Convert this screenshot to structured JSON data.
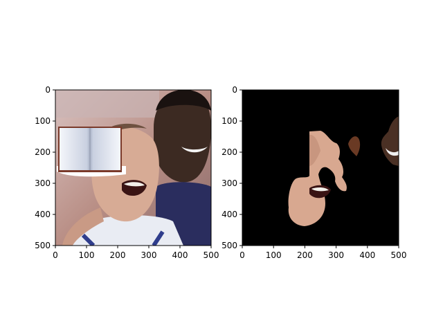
{
  "chart_data": [
    {
      "type": "image",
      "title": "",
      "xlabel": "",
      "ylabel": "",
      "xlim": [
        0,
        500
      ],
      "ylim": [
        500,
        0
      ],
      "xticks": [
        0,
        100,
        200,
        300,
        400,
        500
      ],
      "yticks": [
        0,
        100,
        200,
        300,
        400,
        500
      ],
      "content": "photo of two basketball players with an open book pasted over the left player's eyes",
      "overlay": {
        "kind": "open-book",
        "x": [
          10,
          210
        ],
        "y": [
          115,
          275
        ]
      }
    },
    {
      "type": "image",
      "title": "",
      "xlabel": "",
      "ylabel": "",
      "xlim": [
        0,
        500
      ],
      "ylim": [
        500,
        0
      ],
      "xticks": [
        0,
        100,
        200,
        300,
        400,
        500
      ],
      "yticks": [
        0,
        100,
        200,
        300,
        400,
        500
      ],
      "content": "segmentation mask showing skin regions on black background",
      "background": "#000000"
    }
  ],
  "colors": {
    "skin": "#d8a890",
    "skin_dark": "#5a3222",
    "background_mask": "#000000",
    "axis": "#000000"
  }
}
